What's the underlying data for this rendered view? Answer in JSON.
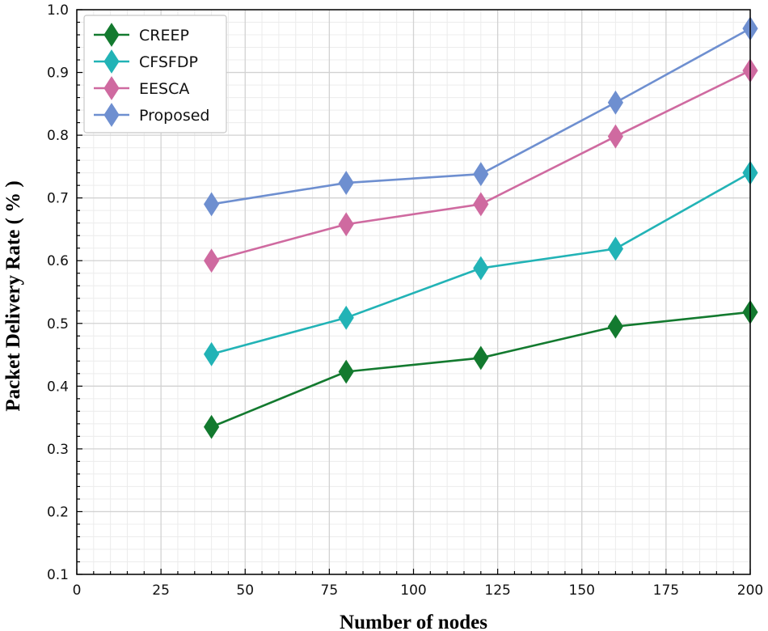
{
  "chart_data": {
    "type": "line",
    "xlabel": "Number of nodes",
    "ylabel": "Packet Delivery Rate ( % )",
    "xlim": [
      0,
      200
    ],
    "ylim": [
      0.1,
      1.0
    ],
    "x_ticks": [
      "0",
      "25",
      "50",
      "75",
      "100",
      "125",
      "150",
      "175",
      "200"
    ],
    "y_ticks": [
      "0.1",
      "0.2",
      "0.3",
      "0.4",
      "0.5",
      "0.6",
      "0.7",
      "0.8",
      "0.9",
      "1.0"
    ],
    "grid": true,
    "legend_position": "top-left",
    "x": [
      40,
      80,
      120,
      160,
      200
    ],
    "series": [
      {
        "name": "CREEP",
        "values": [
          0.335,
          0.423,
          0.445,
          0.495,
          0.518
        ],
        "color": "#137a2f"
      },
      {
        "name": "CFSFDP",
        "values": [
          0.451,
          0.509,
          0.588,
          0.619,
          0.74
        ],
        "color": "#22b3b6"
      },
      {
        "name": "EESCA",
        "values": [
          0.6,
          0.658,
          0.69,
          0.798,
          0.903
        ],
        "color": "#cf6aa0"
      },
      {
        "name": "Proposed",
        "values": [
          0.69,
          0.724,
          0.738,
          0.852,
          0.97
        ],
        "color": "#6e8fd0"
      }
    ]
  }
}
